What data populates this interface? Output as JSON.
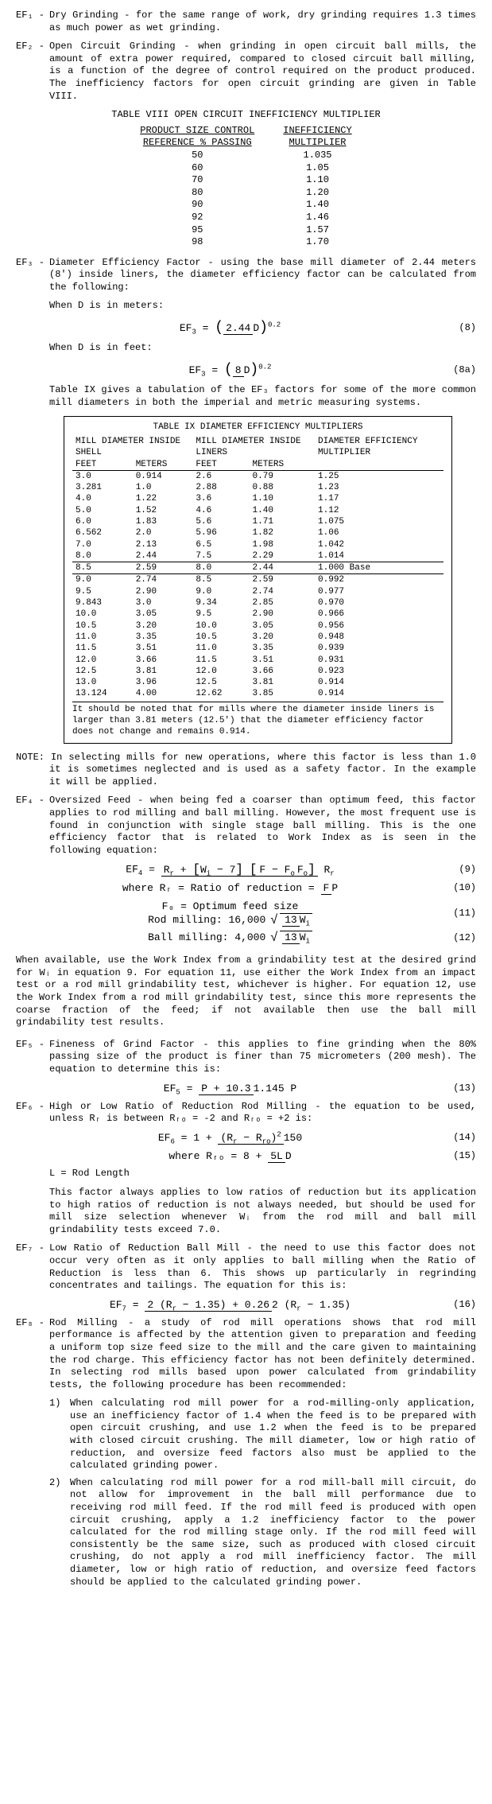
{
  "ef1": {
    "label": "EF₁ -",
    "text": "Dry Grinding - for the same range of work, dry grinding requires 1.3 times as much power as wet grinding."
  },
  "ef2": {
    "label": "EF₂ -",
    "text": "Open Circuit Grinding - when grinding in open circuit ball mills, the amount of extra power required, compared to closed circuit ball milling, is a function of the degree of control required on the product produced. The inefficiency factors for open circuit grinding are given in Table VIII."
  },
  "t8": {
    "title": "TABLE VIII  OPEN CIRCUIT INEFFICIENCY MULTIPLIER",
    "h1a": "PRODUCT SIZE CONTROL",
    "h1b": "REFERENCE % PASSING",
    "h2a": "INEFFICIENCY",
    "h2b": "MULTIPLIER",
    "rows": [
      [
        "50",
        "1.035"
      ],
      [
        "60",
        "1.05"
      ],
      [
        "70",
        "1.10"
      ],
      [
        "80",
        "1.20"
      ],
      [
        "90",
        "1.40"
      ],
      [
        "92",
        "1.46"
      ],
      [
        "95",
        "1.57"
      ],
      [
        "98",
        "1.70"
      ]
    ]
  },
  "ef3": {
    "label": "EF₃ -",
    "text": "Diameter Efficiency Factor - using the base mill diameter of 2.44 meters (8') inside liners, the diameter efficiency factor can be calculated from the following:",
    "whenM": "When D is in meters:",
    "eqM": "EF₃ = (2.44 / D)^0.2",
    "eqMnum": "(8)",
    "whenF": "When D is in feet:",
    "eqF": "EF₃ = (8 / D)^0.2",
    "eqFnum": "(8a)",
    "tab": "Table IX gives a tabulation of the EF₃ factors for some of the more common mill diameters in both the imperial and metric measuring systems."
  },
  "t9": {
    "title": "TABLE IX  DIAMETER EFFICIENCY MULTIPLIERS",
    "h1": "MILL DIAMETER INSIDE SHELL",
    "h2": "MILL DIAMETER INSIDE LINERS",
    "h3": "DIAMETER EFFICIENCY MULTIPLIER",
    "sub": [
      "FEET",
      "METERS",
      "FEET",
      "METERS"
    ],
    "rows": [
      [
        "3.0",
        "0.914",
        "2.6",
        "0.79",
        "1.25"
      ],
      [
        "3.281",
        "1.0",
        "2.88",
        "0.88",
        "1.23"
      ],
      [
        "4.0",
        "1.22",
        "3.6",
        "1.10",
        "1.17"
      ],
      [
        "5.0",
        "1.52",
        "4.6",
        "1.40",
        "1.12"
      ],
      [
        "6.0",
        "1.83",
        "5.6",
        "1.71",
        "1.075"
      ],
      [
        "6.562",
        "2.0",
        "5.96",
        "1.82",
        "1.06"
      ],
      [
        "7.0",
        "2.13",
        "6.5",
        "1.98",
        "1.042"
      ],
      [
        "8.0",
        "2.44",
        "7.5",
        "2.29",
        "1.014"
      ]
    ],
    "base": [
      "8.5",
      "2.59",
      "8.0",
      "2.44",
      "1.000 Base"
    ],
    "rows2": [
      [
        "9.0",
        "2.74",
        "8.5",
        "2.59",
        "0.992"
      ],
      [
        "9.5",
        "2.90",
        "9.0",
        "2.74",
        "0.977"
      ],
      [
        "9.843",
        "3.0",
        "9.34",
        "2.85",
        "0.970"
      ],
      [
        "10.0",
        "3.05",
        "9.5",
        "2.90",
        "0.966"
      ],
      [
        "10.5",
        "3.20",
        "10.0",
        "3.05",
        "0.956"
      ],
      [
        "11.0",
        "3.35",
        "10.5",
        "3.20",
        "0.948"
      ],
      [
        "11.5",
        "3.51",
        "11.0",
        "3.35",
        "0.939"
      ],
      [
        "12.0",
        "3.66",
        "11.5",
        "3.51",
        "0.931"
      ],
      [
        "12.5",
        "3.81",
        "12.0",
        "3.66",
        "0.923"
      ],
      [
        "13.0",
        "3.96",
        "12.5",
        "3.81",
        "0.914"
      ],
      [
        "13.124",
        "4.00",
        "12.62",
        "3.85",
        "0.914"
      ]
    ],
    "note": "It should be noted that for mills where the diameter inside liners is larger than 3.81 meters (12.5') that the diameter efficiency factor does not change and remains 0.914."
  },
  "noteSel": "NOTE: In selecting mills for new operations, where this factor is less than 1.0 it is sometimes neglected and is used as a safety factor. In the example it will be applied.",
  "ef4": {
    "label": "EF₄ -",
    "text": "Oversized Feed - when being fed a coarser than optimum feed, this factor applies to rod milling and ball milling. However, the most frequent use is found in conjunction with single stage ball milling. This is the one efficiency factor that is related to Work Index as is seen in the following equation:",
    "eq9n": "(9)",
    "eq10t": "where Rᵣ = Ratio of reduction = ",
    "eq10n": "(10)",
    "eq11a": "F₀ = Optimum feed size",
    "eq11b": "Rod milling:   16,000",
    "eq11n": "(11)",
    "eq12a": "Ball milling:   4,000",
    "eq12n": "(12)",
    "after": "When available, use the Work Index from a grindability test at the desired grind for Wᵢ in equation 9. For equation 11, use either the Work Index from an impact test or a rod mill grindability test, whichever is higher. For equation 12, use the Work Index from a rod mill grindability test, since this more represents the coarse fraction of the feed; if not available then use the ball mill grindability test results."
  },
  "ef5": {
    "label": "EF₅ -",
    "text": "Fineness of Grind Factor - this applies to fine grinding when the 80% passing size of the product is finer than 75 micrometers (200 mesh). The equation to determine this is:",
    "eq": "EF₅ = (P + 10.3) / (1.145 P)",
    "eqn": "(13)"
  },
  "ef6": {
    "label": "EF₆ -",
    "text": "High or Low Ratio of Reduction Rod Milling - the equation to be used, unless Rᵣ is between Rᵣₒ = -2 and Rᵣₒ = +2 is:",
    "eq14n": "(14)",
    "eq15t": "where Rᵣₒ = 8 + ",
    "eq15n": "(15)",
    "L": "L = Rod Length",
    "after": "This factor always applies to low ratios of reduction but its application to high ratios of reduction is not always needed, but should be used for mill size selection whenever Wᵢ from the rod mill and ball mill grindability tests exceed 7.0."
  },
  "ef7": {
    "label": "EF₇ -",
    "text": "Low Ratio of Reduction Ball Mill - the need to use this factor does not occur very often as it only applies to ball milling when the Ratio of Reduction is less than 6. This shows up particularly in regrinding concentrates and tailings. The equation for this is:",
    "eq": "EF₇ = [2 (Rᵣ - 1.35) + 0.26] / [2 (Rᵣ - 1.35)]",
    "eqn": "(16)"
  },
  "ef8": {
    "label": "EF₈ -",
    "text": "Rod Milling - a study of rod mill operations shows that rod mill performance is affected by the attention given to preparation and feeding a uniform top size feed size to the mill and the care given to maintaining the rod charge. This efficiency factor has not been definitely determined. In selecting rod mills based upon power calculated from grindability tests, the following procedure has been recommended:",
    "i1": "When calculating rod mill power for a rod-milling-only application, use an inefficiency factor of 1.4 when the feed is to be prepared with open circuit crushing, and use 1.2 when the feed is to be prepared with closed circuit crushing. The mill diameter, low or high ratio of reduction, and oversize feed factors also must be applied to the calculated grinding power.",
    "i2": "When calculating rod mill power for a rod mill-ball mill circuit, do not allow for improvement in the ball mill performance due to receiving rod mill feed. If the rod mill feed is produced with open circuit crushing, apply a 1.2 inefficiency factor to the power calculated for the rod milling stage only. If the rod mill feed will consistently be the same size, such as produced with closed circuit crushing, do not apply a rod mill inefficiency factor. The mill diameter, low or high ratio of reduction, and oversize feed factors should be applied to the calculated grinding power."
  }
}
